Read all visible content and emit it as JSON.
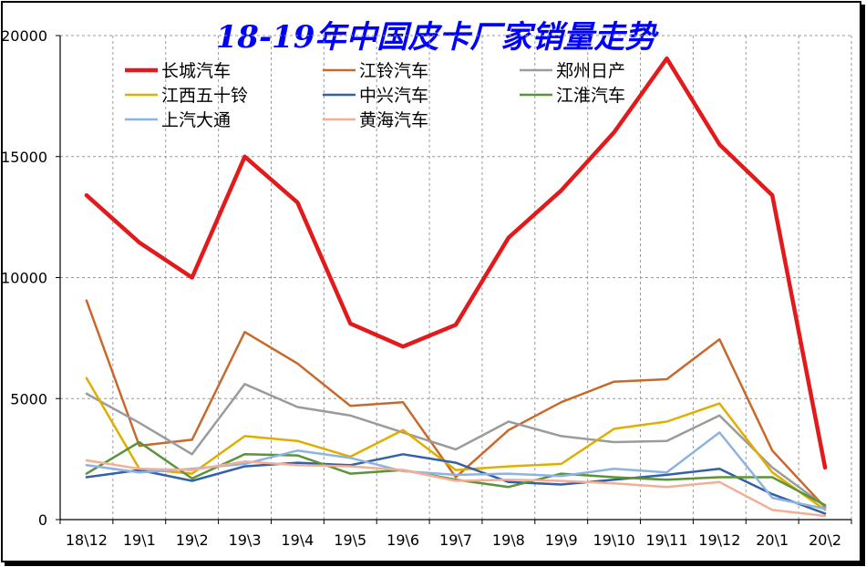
{
  "chart_data": {
    "type": "line",
    "title": "18-19年中国皮卡厂家销量走势",
    "title_color": "#0000FF",
    "xlabel": "",
    "ylabel": "",
    "ylim": [
      0,
      20000
    ],
    "yticks": [
      "0",
      "5000",
      "10000",
      "15000",
      "20000"
    ],
    "grid": true,
    "legend_position": "top-left",
    "categories": [
      "18\\12",
      "19\\1",
      "19\\2",
      "19\\3",
      "19\\4",
      "19\\5",
      "19\\6",
      "19\\7",
      "19\\8",
      "19\\9",
      "19\\10",
      "19\\11",
      "19\\12",
      "20\\1",
      "20\\2"
    ],
    "series": [
      {
        "name": "长城汽车",
        "color": "#E31A1C",
        "width": 4.5,
        "values": [
          13400,
          11450,
          10000,
          15000,
          13100,
          8100,
          7150,
          8050,
          11650,
          13600,
          16000,
          19050,
          15500,
          13400,
          2150
        ]
      },
      {
        "name": "江铃汽车",
        "color": "#C8692B",
        "width": 2.5,
        "values": [
          9050,
          3050,
          3300,
          7750,
          6450,
          4700,
          4850,
          1750,
          3700,
          4850,
          5700,
          5800,
          7450,
          2850,
          500
        ]
      },
      {
        "name": "郑州日产",
        "color": "#9B9B9B",
        "width": 2.5,
        "values": [
          5200,
          4000,
          2700,
          5600,
          4650,
          4300,
          3600,
          2900,
          4050,
          3450,
          3200,
          3250,
          4300,
          2150,
          550
        ]
      },
      {
        "name": "江西五十铃",
        "color": "#E0AE00",
        "width": 2.5,
        "values": [
          5850,
          2100,
          1900,
          3450,
          3250,
          2600,
          3700,
          2050,
          2200,
          2300,
          3750,
          4050,
          4800,
          1950,
          400
        ]
      },
      {
        "name": "中兴汽车",
        "color": "#3560A8",
        "width": 2.5,
        "values": [
          1750,
          2050,
          1600,
          2200,
          2350,
          2250,
          2700,
          2350,
          1550,
          1450,
          1650,
          1850,
          2100,
          1050,
          250
        ]
      },
      {
        "name": "江淮汽车",
        "color": "#5B9438",
        "width": 2.5,
        "values": [
          1900,
          3200,
          1700,
          2700,
          2650,
          1900,
          2050,
          1650,
          1350,
          1900,
          1750,
          1650,
          1750,
          1750,
          600
        ]
      },
      {
        "name": "上汽大通",
        "color": "#8DB3E0",
        "width": 2.5,
        "values": [
          2250,
          1950,
          2100,
          2300,
          2850,
          2550,
          2000,
          1850,
          1900,
          1800,
          2100,
          1950,
          3600,
          900,
          450
        ]
      },
      {
        "name": "黄海汽车",
        "color": "#F4AE96",
        "width": 2.5,
        "values": [
          2450,
          2100,
          2050,
          2400,
          2250,
          2200,
          2050,
          1600,
          1650,
          1600,
          1500,
          1350,
          1550,
          400,
          150
        ]
      }
    ]
  }
}
